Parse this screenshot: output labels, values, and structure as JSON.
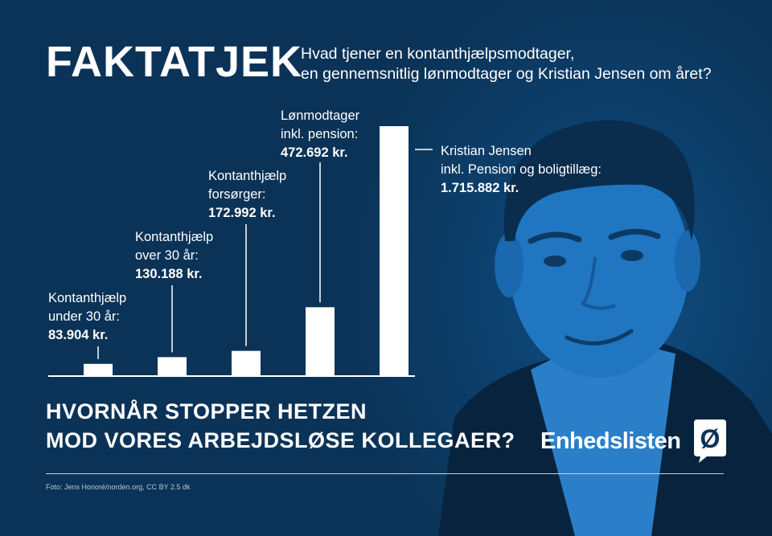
{
  "header": {
    "headline": "FAKTATJEK",
    "subtitle_line1": "Hvad tjener en kontanthjælpsmodtager,",
    "subtitle_line2": "en gennemsnitlig lønmodtager og Kristian Jensen om året?"
  },
  "chart_data": {
    "type": "bar",
    "unit": "kr.",
    "categories": [
      "Kontanthjælp under 30 år",
      "Kontanthjælp over 30 år",
      "Kontanthjælp forsørger",
      "Lønmodtager inkl. pension",
      "Kristian Jensen inkl. Pension og boligtillæg"
    ],
    "values": [
      83904,
      130188,
      172992,
      472692,
      1715882
    ],
    "labels": [
      [
        "Kontanthjælp",
        "under 30 år:",
        "83.904 kr."
      ],
      [
        "Kontanthjælp",
        "over 30 år:",
        "130.188 kr."
      ],
      [
        "Kontanthjælp",
        "forsørger:",
        "172.992 kr."
      ],
      [
        "Lønmodtager",
        "inkl. pension:",
        "472.692 kr."
      ],
      [
        "Kristian Jensen",
        "inkl. Pension og boligtillæg:",
        "1.715.882 kr."
      ]
    ],
    "colors": {
      "bar": "#ffffff",
      "axis": "#ffffff",
      "leader": "#ffffff"
    },
    "grid": false,
    "legend": "none"
  },
  "footer": {
    "slogan_line1": "HVORNÅR STOPPER HETZEN",
    "slogan_line2": "MOD VORES ARBEJDSLØSE KOLLEGAER?",
    "logo_text": "Enhedslisten",
    "logo_mark": "Ø",
    "credit": "Foto: Jens Honoré/norden.org, CC BY 2.5 dk"
  },
  "colors": {
    "background": "#0b3357",
    "portrait": "#1a74c4",
    "text": "#ffffff"
  }
}
